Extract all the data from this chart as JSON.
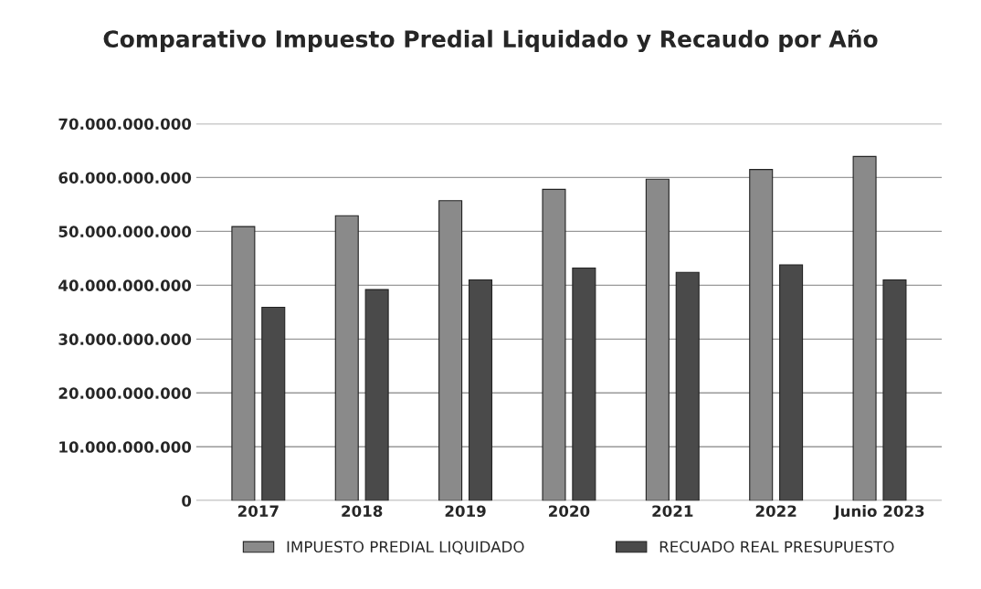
{
  "chart_data": {
    "type": "bar",
    "title": "Comparativo Impuesto Predial Liquidado y Recaudo por Año",
    "categories": [
      "2017",
      "2018",
      "2019",
      "2020",
      "2021",
      "2022",
      "Junio 2023"
    ],
    "series": [
      {
        "name": "IMPUESTO PREDIAL LIQUIDADO",
        "color": "#8a8a8a",
        "values": [
          50900000000,
          52900000000,
          55700000000,
          57800000000,
          59700000000,
          61500000000,
          63900000000
        ]
      },
      {
        "name": "RECUADO REAL PRESUPUESTO",
        "color": "#4a4a4a",
        "values": [
          35900000000,
          39200000000,
          41000000000,
          43200000000,
          42400000000,
          43800000000,
          41000000000
        ]
      }
    ],
    "ylim": [
      0,
      70000000000
    ],
    "yticks": [
      0,
      {
        "value": 10000000000,
        "label": "10.000.000.000"
      },
      {
        "value": 20000000000,
        "label": "20.000.000.000"
      },
      {
        "value": 30000000000,
        "label": "30.000.000.000"
      },
      {
        "value": 40000000000,
        "label": "40.000.000.000"
      },
      {
        "value": 50000000000,
        "label": "50.000.000.000"
      },
      {
        "value": 60000000000,
        "label": "60.000.000.000"
      },
      {
        "value": 70000000000,
        "label": "70.000.000.000"
      }
    ],
    "grid": "y",
    "legend": "bottom"
  }
}
